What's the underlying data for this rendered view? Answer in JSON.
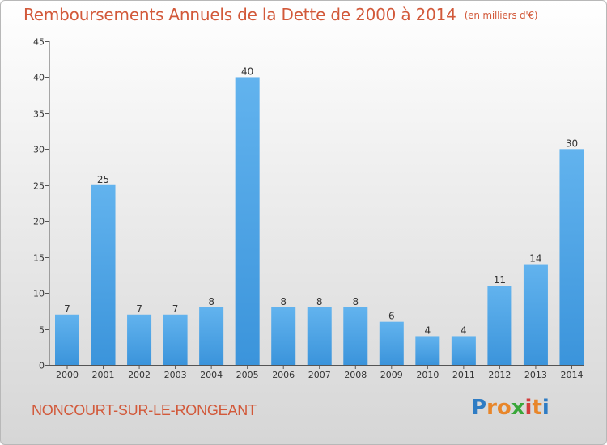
{
  "chart_data": {
    "type": "bar",
    "title": "Remboursements Annuels de la Dette de 2000 à 2014",
    "unit": "(en milliers d'€)",
    "subtitle": "NONCOURT-SUR-LE-RONGEANT",
    "categories": [
      "2000",
      "2001",
      "2002",
      "2003",
      "2004",
      "2005",
      "2006",
      "2007",
      "2008",
      "2009",
      "2010",
      "2011",
      "2012",
      "2013",
      "2014"
    ],
    "values": [
      7,
      25,
      7,
      7,
      8,
      40,
      8,
      8,
      8,
      6,
      4,
      4,
      11,
      14,
      30
    ],
    "yticks": [
      0,
      5,
      10,
      15,
      20,
      25,
      30,
      35,
      40,
      45
    ],
    "ylim": [
      0,
      45
    ],
    "grid": false,
    "bar_color": "#3b94db",
    "bar_color_light": "#62b3ee",
    "title_color": "#d2593a"
  },
  "brand": {
    "letters": [
      "P",
      "r",
      "o",
      "x",
      "i",
      "t",
      "i"
    ],
    "colors": [
      "#2e7cc4",
      "#e8862a",
      "#e8862a",
      "#3aa73a",
      "#d33c3c",
      "#e8862a",
      "#2e7cc4"
    ]
  }
}
